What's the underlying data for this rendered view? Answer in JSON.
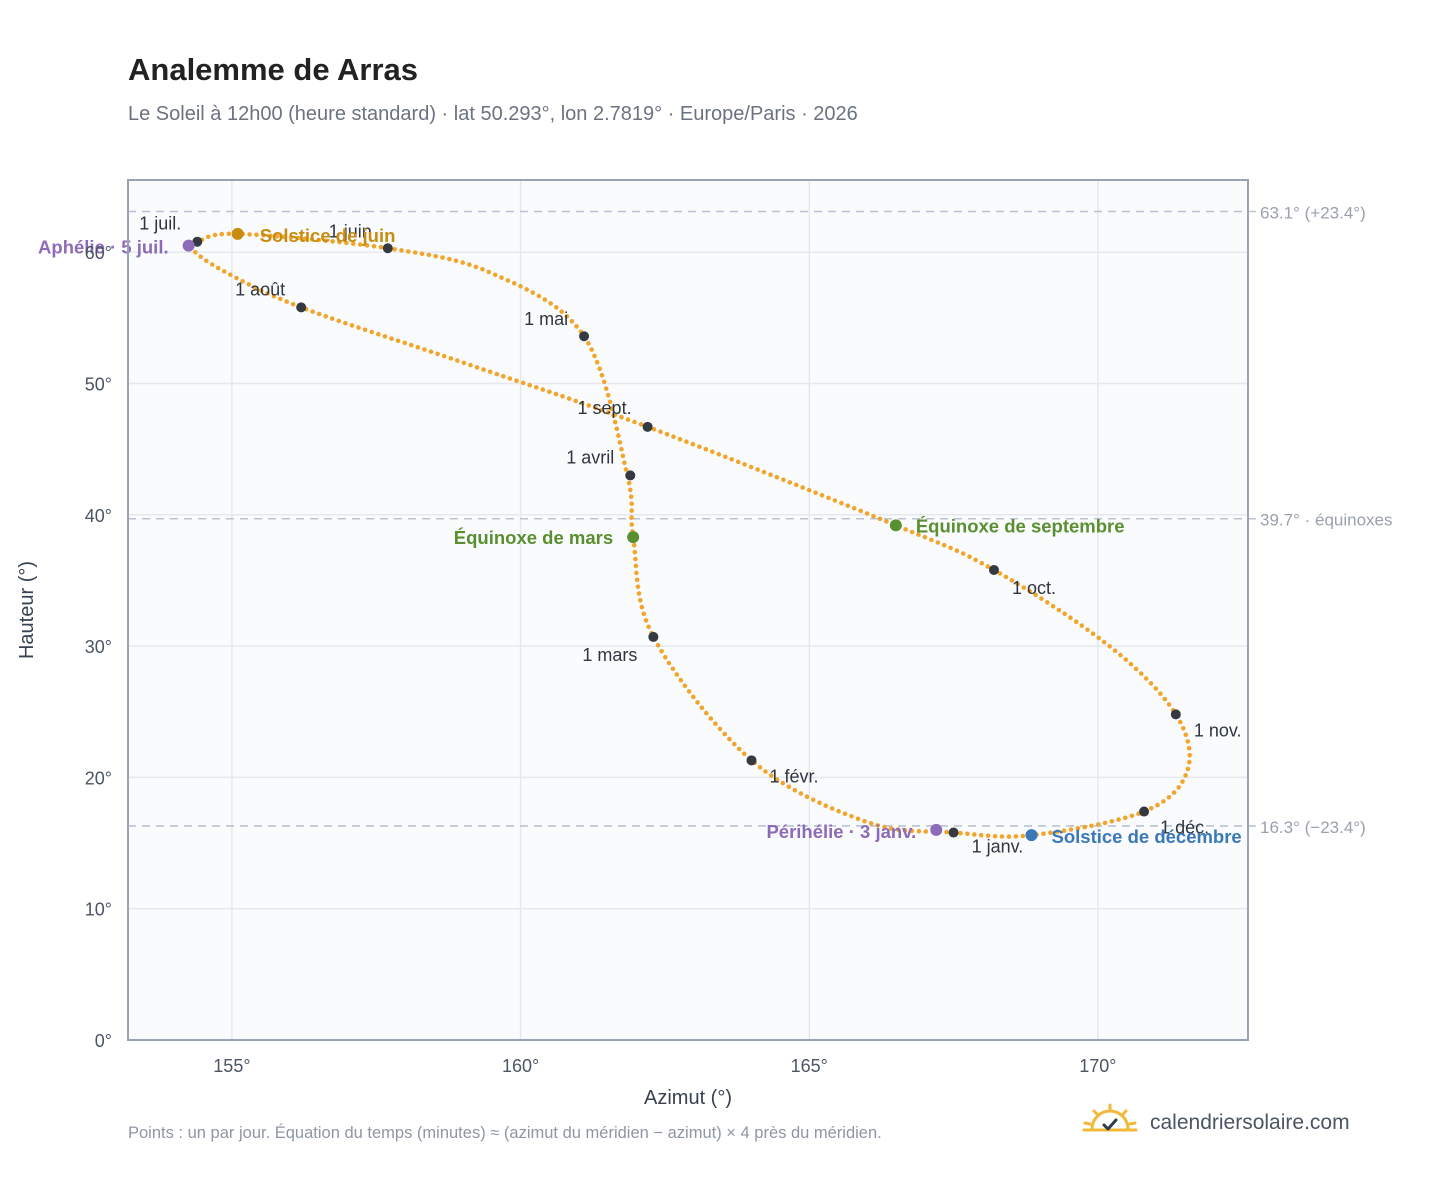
{
  "header": {
    "title": "Analemme de Arras",
    "subtitle": "Le Soleil à 12h00 (heure standard) · lat 50.293°, lon 2.7819° · Europe/Paris · 2026"
  },
  "footer": {
    "note": "Points : un par jour. Équation du temps (minutes) ≈ (azimut du méridien − azimut) × 4 près du méridien.",
    "brand": "calendriersolaire.com",
    "brand_icon": "sun-check-icon"
  },
  "colors": {
    "curve": "#f2a52b",
    "month_marker": "#353a40",
    "solstice_june": "#c98c10",
    "solstice_december": "#3a78b8",
    "equinox": "#5a8f30",
    "apsis": "#8e6bb8",
    "plot_bg": "#f9fbfd",
    "grid": "#e5e9ef",
    "frame": "#9aa3b4",
    "reference_line": "#b9c3d2"
  },
  "chart_data": {
    "type": "scatter",
    "xlabel": "Azimut (°)",
    "ylabel": "Hauteur (°)",
    "xlim": [
      153.2,
      172.6
    ],
    "ylim": [
      0,
      65.5
    ],
    "xticks": [
      155,
      160,
      165,
      170
    ],
    "xtick_labels": [
      "155°",
      "160°",
      "165°",
      "170°"
    ],
    "yticks": [
      0,
      10,
      20,
      30,
      40,
      50,
      60
    ],
    "ytick_labels": [
      "0°",
      "10°",
      "20°",
      "30°",
      "40°",
      "50°",
      "60°"
    ],
    "grid": true,
    "series": [
      {
        "points_per": "day",
        "path": [
          [
            167.5,
            15.8
          ],
          [
            166.0,
            16.6
          ],
          [
            164.0,
            21.3
          ],
          [
            162.3,
            30.7
          ],
          [
            161.95,
            38.3
          ],
          [
            161.85,
            43.0
          ],
          [
            161.1,
            53.6
          ],
          [
            159.5,
            58.4
          ],
          [
            157.7,
            60.3
          ],
          [
            155.1,
            61.4
          ],
          [
            154.4,
            60.8
          ],
          [
            154.25,
            60.5
          ],
          [
            154.8,
            58.7
          ],
          [
            156.2,
            55.8
          ],
          [
            159.0,
            51.6
          ],
          [
            162.2,
            46.7
          ],
          [
            166.5,
            39.2
          ],
          [
            168.2,
            35.8
          ],
          [
            170.2,
            30.0
          ],
          [
            171.35,
            24.8
          ],
          [
            171.55,
            20.5
          ],
          [
            170.8,
            17.4
          ],
          [
            168.85,
            15.6
          ],
          [
            167.5,
            15.8
          ]
        ]
      }
    ],
    "month_markers": [
      {
        "label": "1 janv.",
        "x": 167.5,
        "y": 15.8
      },
      {
        "label": "1 févr.",
        "x": 164.0,
        "y": 21.3
      },
      {
        "label": "1 mars",
        "x": 162.3,
        "y": 30.7
      },
      {
        "label": "1 avril",
        "x": 161.9,
        "y": 43.0
      },
      {
        "label": "1 mai",
        "x": 161.1,
        "y": 53.6
      },
      {
        "label": "1 juin",
        "x": 157.7,
        "y": 60.3
      },
      {
        "label": "1 juil.",
        "x": 154.4,
        "y": 60.8
      },
      {
        "label": "1 août",
        "x": 156.2,
        "y": 55.8
      },
      {
        "label": "1 sept.",
        "x": 162.2,
        "y": 46.7
      },
      {
        "label": "1 oct.",
        "x": 168.2,
        "y": 35.8
      },
      {
        "label": "1 nov.",
        "x": 171.35,
        "y": 24.8
      },
      {
        "label": "1 déc.",
        "x": 170.8,
        "y": 17.4
      }
    ],
    "events": [
      {
        "label": "Solstice de juin",
        "x": 155.1,
        "y": 61.4,
        "kind": "solstice_june"
      },
      {
        "label": "Solstice de décembre",
        "x": 168.85,
        "y": 15.6,
        "kind": "solstice_december"
      },
      {
        "label": "Équinoxe de mars",
        "x": 161.95,
        "y": 38.3,
        "kind": "equinox"
      },
      {
        "label": "Équinoxe de septembre",
        "x": 166.5,
        "y": 39.2,
        "kind": "equinox"
      },
      {
        "label": "Aphélie · 5 juil.",
        "x": 154.25,
        "y": 60.5,
        "kind": "apsis"
      },
      {
        "label": "Périhélie · 3 janv.",
        "x": 167.2,
        "y": 16.0,
        "kind": "apsis"
      }
    ],
    "reference_lines": [
      {
        "y": 63.1,
        "label": "63.1° (+23.4°)"
      },
      {
        "y": 39.7,
        "label": "39.7° · équinoxes"
      },
      {
        "y": 16.3,
        "label": "16.3° (−23.4°)"
      }
    ]
  }
}
